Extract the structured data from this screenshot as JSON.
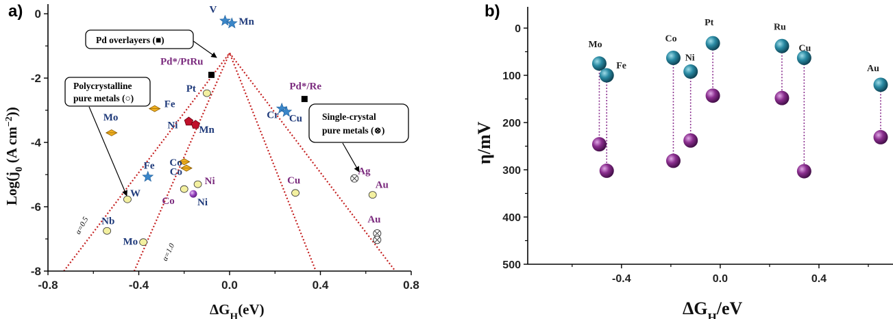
{
  "chart_data": [
    {
      "panel": "a)",
      "type": "scatter",
      "xlabel_main": "ΔG",
      "xlabel_sub": "H",
      "xlabel_tail": "(eV)",
      "ylabel_pre": "Log(j",
      "ylabel_sub": "0",
      "ylabel_mid": " (A cm",
      "ylabel_sup": "−2",
      "ylabel_post": "))",
      "xlim": [
        -0.8,
        0.8
      ],
      "ylim": [
        -8,
        0.3
      ],
      "xticks": [
        "-0.8",
        "-0.4",
        "0.0",
        "0.4",
        "0.8"
      ],
      "xtick_values": [
        -0.8,
        -0.4,
        0.0,
        0.4,
        0.8
      ],
      "yticks": [
        "0",
        "-2",
        "-4",
        "-6",
        "-8"
      ],
      "ytick_values": [
        0,
        -2,
        -4,
        -6,
        -8
      ],
      "grid": false,
      "volcano_apex": [
        0,
        -1.22
      ],
      "lines": [
        {
          "label": "α=0.5",
          "left_end": [
            -0.73,
            -8
          ],
          "right_end": [
            0.73,
            -8
          ]
        },
        {
          "label": "α=1.0",
          "left_end": [
            -0.42,
            -8
          ],
          "right_end": [
            0.38,
            -8
          ]
        }
      ],
      "points": [
        {
          "label": "V",
          "x": -0.02,
          "y": -0.22,
          "marker": "star",
          "color": "#3a86c8",
          "label_color": "#1f3a7a"
        },
        {
          "label": "Mn",
          "x": 0.01,
          "y": -0.3,
          "marker": "star",
          "color": "#3a86c8",
          "label_color": "#1f3a7a"
        },
        {
          "label": "Pd*/PtRu",
          "x": -0.08,
          "y": -1.9,
          "marker": "square",
          "color": "#000000",
          "label_color": "#7b2b7e"
        },
        {
          "label": "Pt",
          "x": -0.1,
          "y": -2.47,
          "marker": "circle",
          "color": "#f3f0a0",
          "label_color": "#1f3a7a"
        },
        {
          "label": "Pd*/Re",
          "x": 0.33,
          "y": -2.65,
          "marker": "square",
          "color": "#000000",
          "label_color": "#7b2b7e"
        },
        {
          "label": "Cr",
          "x": 0.23,
          "y": -2.95,
          "marker": "star",
          "color": "#3a86c8",
          "label_color": "#1f3a7a"
        },
        {
          "label": "Cu",
          "x": 0.25,
          "y": -3.05,
          "marker": "star",
          "color": "#3a86c8",
          "label_color": "#1f3a7a"
        },
        {
          "label": "Fe",
          "x": -0.33,
          "y": -2.95,
          "marker": "diamond",
          "color": "#f0b020",
          "label_color": "#1f3a7a"
        },
        {
          "label": "Mo",
          "x": -0.52,
          "y": -3.7,
          "marker": "diamond",
          "color": "#f0b020",
          "label_color": "#1f3a7a"
        },
        {
          "label": "Ni",
          "x": -0.18,
          "y": -3.35,
          "marker": "pentagon",
          "color": "#c0102a",
          "label_color": "#1f3a7a"
        },
        {
          "label": "Mn",
          "x": -0.15,
          "y": -3.45,
          "marker": "pentagon",
          "color": "#c0102a",
          "label_color": "#1f3a7a"
        },
        {
          "label": "Co",
          "x": -0.2,
          "y": -4.6,
          "marker": "diamond",
          "color": "#f0b020",
          "label_color": "#1f3a7a"
        },
        {
          "label": "Co",
          "x": -0.19,
          "y": -4.8,
          "marker": "diamond",
          "color": "#f0b020",
          "label_color": "#1f3a7a"
        },
        {
          "label": "Fe",
          "x": -0.36,
          "y": -5.07,
          "marker": "star",
          "color": "#3a86c8",
          "label_color": "#1f3a7a"
        },
        {
          "label": "W",
          "x": -0.45,
          "y": -5.77,
          "marker": "circle",
          "color": "#f3f0a0",
          "label_color": "#1f3a7a"
        },
        {
          "label": "Nb",
          "x": -0.54,
          "y": -6.75,
          "marker": "circle",
          "color": "#f3f0a0",
          "label_color": "#1f3a7a"
        },
        {
          "label": "Mo",
          "x": -0.38,
          "y": -7.1,
          "marker": "circle",
          "color": "#f3f0a0",
          "label_color": "#1f3a7a"
        },
        {
          "label": "Co",
          "x": -0.2,
          "y": -5.45,
          "marker": "circle",
          "color": "#f3f0a0",
          "label_color": "#7b2b7e"
        },
        {
          "label": "Ni",
          "x": -0.14,
          "y": -5.3,
          "marker": "circle",
          "color": "#f3f0a0",
          "label_color": "#7b2b7e"
        },
        {
          "label": "Ni",
          "x": -0.16,
          "y": -5.6,
          "marker": "sphere",
          "color": "#8a3ab0",
          "label_color": "#1f3a7a"
        },
        {
          "label": "Cu",
          "x": 0.29,
          "y": -5.57,
          "marker": "circle",
          "color": "#f3f0a0",
          "label_color": "#7b2b7e"
        },
        {
          "label": "Ag",
          "x": 0.55,
          "y": -5.12,
          "marker": "otimes",
          "color": "#ffffff",
          "label_color": "#7b2b7e"
        },
        {
          "label": "Au",
          "x": 0.63,
          "y": -5.63,
          "marker": "circle",
          "color": "#f3f0a0",
          "label_color": "#7b2b7e"
        },
        {
          "label": "Au",
          "x": 0.65,
          "y": -6.83,
          "marker": "otimes",
          "color": "#ffffff",
          "label_color": "#7b2b7e"
        },
        {
          "label": "",
          "x": 0.65,
          "y": -7.03,
          "marker": "otimes",
          "color": "#ffffff",
          "label_color": "#7b2b7e"
        }
      ],
      "annotations": [
        {
          "text": "Pd overlayers (",
          "symbol": "■",
          "tail": ")"
        },
        {
          "text_line1": "Polycrystalline",
          "text_line2": "pure metals (",
          "symbol": "○",
          "tail": ")"
        },
        {
          "text_line1": "Single-crystal",
          "text_line2": "pure metals (",
          "symbol": "⊗",
          "tail": ")"
        }
      ]
    },
    {
      "panel": "b)",
      "type": "scatter",
      "xlabel_main": "ΔG",
      "xlabel_sub": "H",
      "xlabel_tail": "/eV",
      "ylabel": "η/mV",
      "xlim": [
        -0.78,
        0.7
      ],
      "ylim": [
        500,
        -45
      ],
      "xticks": [
        "-0.4",
        "0.0",
        "0.4"
      ],
      "xtick_values": [
        -0.4,
        0.0,
        0.4
      ],
      "yticks": [
        "0",
        "100",
        "200",
        "300",
        "400",
        "500"
      ],
      "ytick_values": [
        0,
        100,
        200,
        300,
        400,
        500
      ],
      "grid": false,
      "series": [
        {
          "name": "",
          "color": "#1f6f87",
          "values": [
            {
              "label": "Mo",
              "x": -0.49,
              "y": 75
            },
            {
              "label": "Fe",
              "x": -0.46,
              "y": 100
            },
            {
              "label": "Co",
              "x": -0.19,
              "y": 63
            },
            {
              "label": "Ni",
              "x": -0.12,
              "y": 92
            },
            {
              "label": "Pt",
              "x": -0.03,
              "y": 32
            },
            {
              "label": "Ru",
              "x": 0.25,
              "y": 38
            },
            {
              "label": "Cu",
              "x": 0.34,
              "y": 63
            },
            {
              "label": "Au",
              "x": 0.65,
              "y": 120
            }
          ]
        },
        {
          "name": "",
          "color": "#7a2a7e",
          "values": [
            {
              "label": "",
              "x": -0.49,
              "y": 246
            },
            {
              "label": "",
              "x": -0.46,
              "y": 302
            },
            {
              "label": "",
              "x": -0.19,
              "y": 281
            },
            {
              "label": "",
              "x": -0.12,
              "y": 238
            },
            {
              "label": "",
              "x": -0.03,
              "y": 143
            },
            {
              "label": "",
              "x": 0.25,
              "y": 148
            },
            {
              "label": "",
              "x": 0.34,
              "y": 303
            },
            {
              "label": "",
              "x": 0.65,
              "y": 231
            }
          ]
        }
      ]
    }
  ]
}
